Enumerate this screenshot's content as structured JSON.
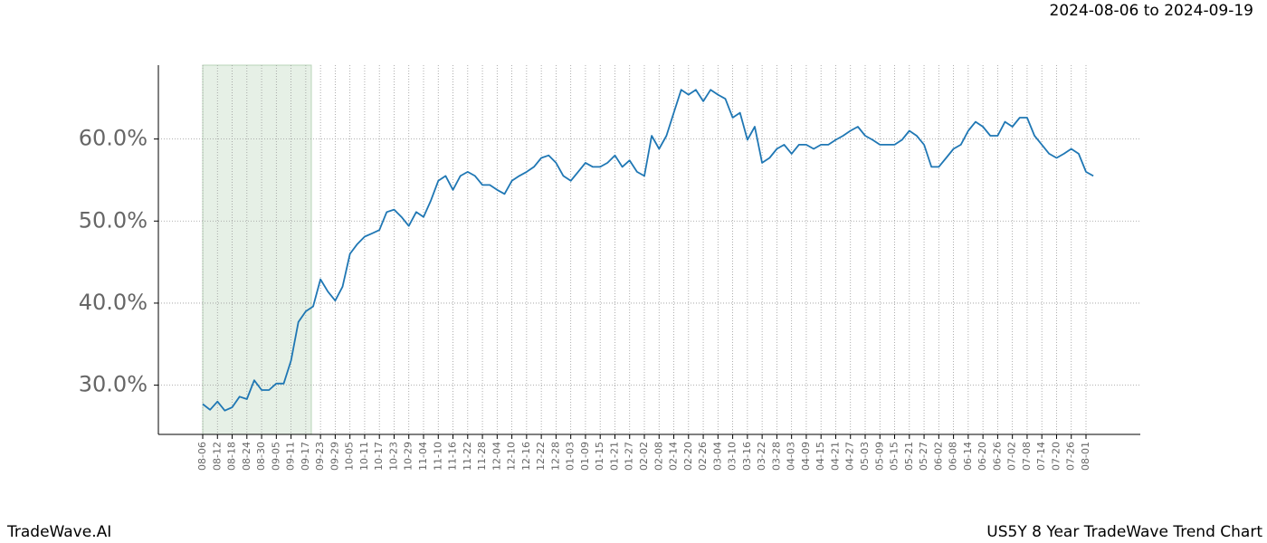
{
  "chart_data": {
    "type": "line",
    "title": "US5Y 8 Year TradeWave Trend Chart",
    "date_range": "2024-08-06 to 2024-09-19",
    "brand": "TradeWave.AI",
    "color": "#1f77b4",
    "grid": true,
    "categories": [
      "08-06",
      null,
      "08-12",
      null,
      "08-18",
      null,
      "08-24",
      null,
      "08-30",
      null,
      "09-05",
      null,
      "09-11",
      null,
      "09-17",
      null,
      "09-23",
      null,
      "09-29",
      null,
      "10-05",
      null,
      "10-11",
      null,
      "10-17",
      null,
      "10-23",
      null,
      "10-29",
      null,
      "11-04",
      null,
      "11-10",
      null,
      "11-16",
      null,
      "11-22",
      null,
      "11-28",
      null,
      "12-04",
      null,
      "12-10",
      null,
      "12-16",
      null,
      "12-22",
      null,
      "12-28",
      null,
      "01-03",
      null,
      "01-09",
      null,
      "01-15",
      null,
      "01-21",
      null,
      "01-27",
      null,
      "02-02",
      null,
      "02-08",
      null,
      "02-14",
      null,
      "02-20",
      null,
      "02-26",
      null,
      "03-04",
      null,
      "03-10",
      null,
      "03-16",
      null,
      "03-22",
      null,
      "03-28",
      null,
      "04-03",
      null,
      "04-09",
      null,
      "04-15",
      null,
      "04-21",
      null,
      "04-27",
      null,
      "05-03",
      null,
      "05-09",
      null,
      "05-15",
      null,
      "05-21",
      null,
      "05-27",
      null,
      "06-02",
      null,
      "06-08",
      null,
      "06-14",
      null,
      "06-20",
      null,
      "06-26",
      null,
      "07-02",
      null,
      "07-08",
      null,
      "07-14",
      null,
      "07-20",
      null,
      "07-26",
      null,
      "08-01",
      null
    ],
    "values": [
      27.7,
      27.0,
      28.0,
      26.9,
      27.3,
      28.6,
      28.3,
      30.6,
      29.4,
      29.4,
      30.2,
      30.2,
      33.0,
      37.7,
      39.0,
      39.6,
      42.9,
      41.4,
      40.3,
      42.0,
      46.0,
      47.2,
      48.1,
      48.5,
      48.9,
      51.1,
      51.4,
      50.5,
      49.4,
      51.1,
      50.5,
      52.5,
      54.9,
      55.5,
      53.8,
      55.5,
      56.0,
      55.5,
      54.4,
      54.4,
      53.8,
      53.3,
      54.9,
      55.5,
      56.0,
      56.6,
      57.7,
      58.0,
      57.1,
      55.5,
      54.9,
      56.0,
      57.1,
      56.6,
      56.6,
      57.1,
      58.0,
      56.6,
      57.4,
      56.0,
      55.5,
      60.4,
      58.8,
      60.4,
      63.2,
      66.0,
      65.4,
      66.0,
      64.6,
      66.0,
      65.4,
      64.9,
      62.6,
      63.2,
      59.9,
      61.5,
      57.1,
      57.7,
      58.8,
      59.3,
      58.2,
      59.3,
      59.3,
      58.8,
      59.3,
      59.3,
      59.9,
      60.4,
      61.0,
      61.5,
      60.4,
      59.9,
      59.3,
      59.3,
      59.3,
      59.9,
      61.0,
      60.4,
      59.3,
      56.6,
      56.6,
      57.7,
      58.8,
      59.3,
      61.0,
      62.1,
      61.5,
      60.4,
      60.4,
      62.1,
      61.5,
      62.6,
      62.6,
      60.4,
      59.3,
      58.2,
      57.7,
      58.2,
      58.8,
      58.2,
      56.0,
      55.5
    ],
    "ylim": [
      24,
      69
    ],
    "yticks": [
      {
        "value": 30,
        "label": "30.0%"
      },
      {
        "value": 40,
        "label": "40.0%"
      },
      {
        "value": 50,
        "label": "50.0%"
      },
      {
        "value": 60,
        "label": "60.0%"
      }
    ]
  }
}
